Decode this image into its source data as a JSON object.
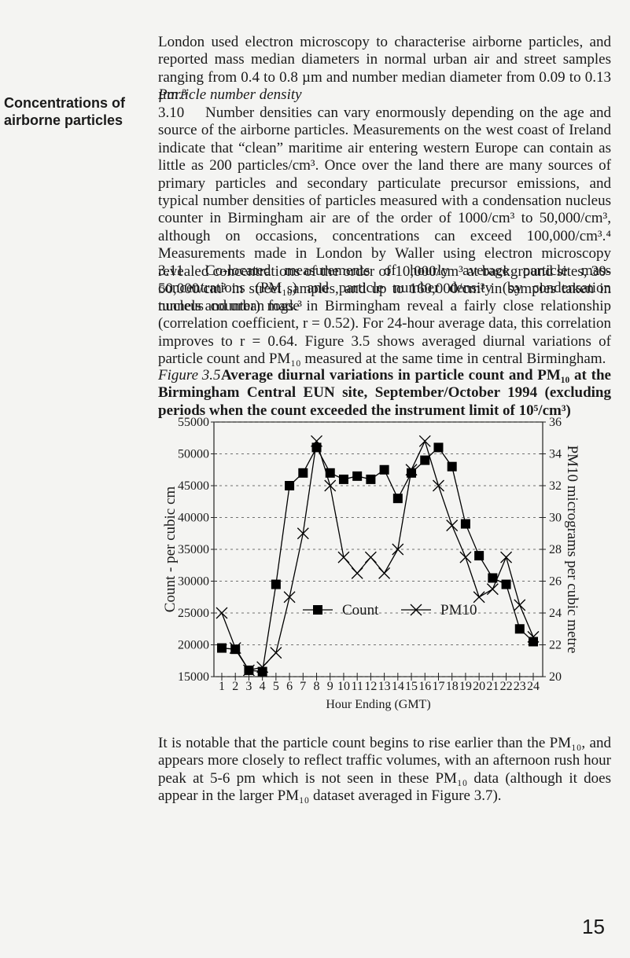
{
  "sidebar": "Concentrations of airborne particles",
  "intro": "London used electron microscopy to characterise airborne particles, and reported mass median diameters in normal urban air and street samples ranging from 0.4 to 0.8 µm and number median diameter from 0.09 to 0.13 µm.³",
  "section_heading": "Particle number density",
  "paragraphs": [
    {
      "number": "3.10",
      "text": "Number densities can vary enormously depending on the age and source of the airborne particles. Measurements on the west coast of Ireland indicate that “clean” maritime air entering western Europe can contain as little as 200 particles/cm³. Once over the land there are many sources of primary particles and secondary particulate precursor emissions, and typical number densities of particles measured with a condensation nucleus counter in Birmingham air are of the order of 1000/cm³ to 50,000/cm³, although on occasions, concentrations can exceed 100,000/cm³.⁴ Measurements made in London by Waller using electron microscopy revealed concentrations of the order of 10,000/cm³ at background sites, 30-50,000/cm³ in street samples, and up to 160,000/cm³ in samples taken in tunnels and urban fogs.³"
    },
    {
      "number": "3.11",
      "text": "Co-located measurements of hourly average particle mass concentrations (PM₁₀) and particle number density (by condensation nucleus counter) made in Birmingham reveal a fairly close relationship (correlation coefficient, r = 0.52). For 24-hour average data, this correlation improves to r = 0.64. Figure 3.5 shows averaged diurnal variations of particle count and PM₁₀ measured at the same time in central Birmingham."
    }
  ],
  "figure": {
    "label": "Figure 3.5",
    "caption": "Average diurnal variations in particle count and PM₁₀ at the Birmingham Central EUN site, September/October 1994 (excluding periods when the count exceeded the instrument limit of 10⁵/cm³)"
  },
  "chart_data": {
    "type": "line",
    "x_label": "Hour Ending (GMT)",
    "y_label": "Count - per cubic cm",
    "y2_label": "PM10 micrograms per cubic metre",
    "categories": [
      "1",
      "2",
      "3",
      "4",
      "5",
      "6",
      "7",
      "8",
      "9",
      "10",
      "11",
      "12",
      "13",
      "14",
      "15",
      "16",
      "17",
      "18",
      "19",
      "20",
      "21",
      "22",
      "23",
      "24"
    ],
    "series": [
      {
        "name": "Count",
        "color": "#000000",
        "marker": "square",
        "values": [
          19500,
          19300,
          16000,
          15800,
          29500,
          45000,
          47000,
          51000,
          47000,
          46000,
          46500,
          46000,
          47500,
          43000,
          47000,
          49000,
          51000,
          48000,
          39000,
          34000,
          30500,
          29500,
          22500,
          20500
        ]
      },
      {
        "name": "PM10",
        "color": "#000000",
        "marker": "x",
        "axis": "y2",
        "values": [
          24,
          21.8,
          20.4,
          20.6,
          21.5,
          25,
          29,
          34.8,
          32,
          27.5,
          26.5,
          27.5,
          26.5,
          28,
          33,
          34.8,
          32,
          29.5,
          27.5,
          25,
          25.5,
          27.5,
          24.5,
          22.5
        ]
      }
    ],
    "ylim": [
      15000,
      55000
    ],
    "yticks": [
      15000,
      20000,
      25000,
      30000,
      35000,
      40000,
      45000,
      50000,
      55000
    ],
    "y2lim": [
      20,
      36
    ],
    "y2ticks": [
      20,
      22,
      24,
      26,
      28,
      30,
      32,
      34,
      36
    ],
    "grid": true
  },
  "closing": "It is notable that the particle count begins to rise earlier than the PM₁₀, and appears more closely to reflect traffic volumes, with an afternoon rush hour peak at 5-6 pm which is not seen in these PM₁₀ data (although it does appear in the larger PM₁₀ dataset averaged in Figure 3.7).",
  "page_number": "15"
}
